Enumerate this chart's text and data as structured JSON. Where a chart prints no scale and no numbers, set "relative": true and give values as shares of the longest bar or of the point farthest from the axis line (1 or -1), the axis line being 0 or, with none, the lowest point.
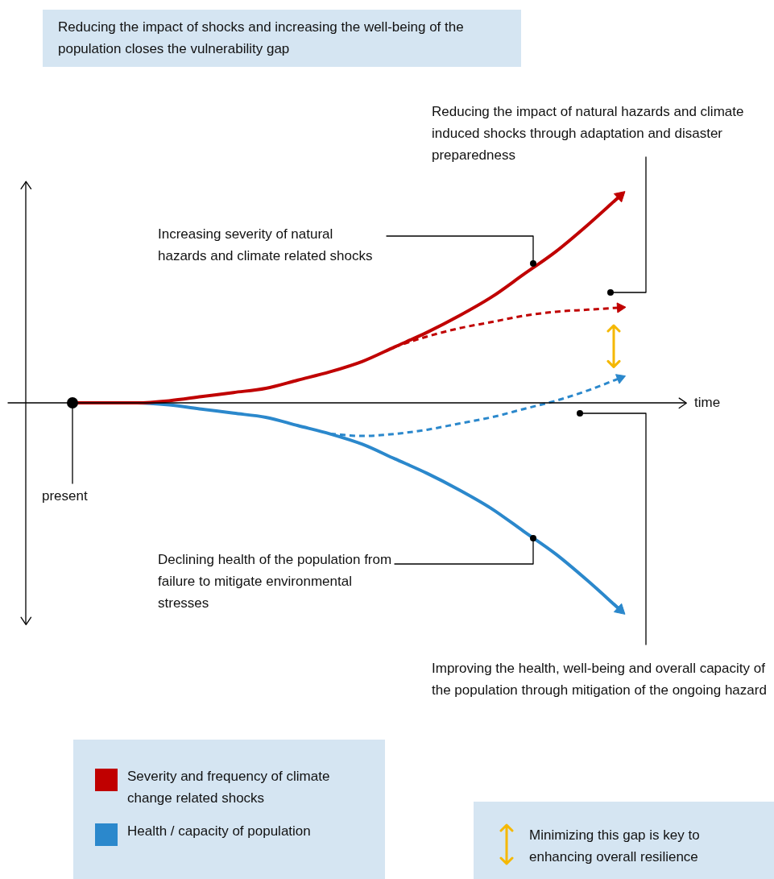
{
  "chart_data": {
    "type": "line",
    "relative": true,
    "legend": "bottom left",
    "title": "Reducing the impact of shocks and increasing the well-being of the population closes the vulnerability gap",
    "xlabel": "time",
    "annotations": [
      "Reducing the impact of natural hazards and climate induced shocks through adaptation and disaster preparedness",
      "Increasing severity of natural hazards and climate related shocks",
      "present",
      "Declining health of the population from failure to mitigate environmental stresses",
      "Improving the health, well-being and overall capacity of the population through mitigation of the ongoing hazard",
      "Minimizing this gap is key to enhancing overall resilience"
    ],
    "categories": [
      null,
      null,
      null,
      null,
      null,
      null,
      null,
      null,
      null,
      null,
      null,
      null,
      null,
      null,
      null,
      null,
      null,
      null
    ],
    "series": [
      {
        "name": "Severity and frequency of climate change related shocks",
        "color": "#c00000",
        "line_style": "solid",
        "values": [
          0,
          0,
          0,
          0.01,
          0.03,
          0.05,
          0.07,
          0.11,
          0.15,
          0.2,
          0.27,
          0.34,
          0.42,
          0.51,
          0.62,
          0.73,
          0.86,
          1
        ]
      },
      {
        "name": "Health / capacity of population",
        "color": "#2b88cc",
        "line_style": "solid",
        "values": [
          0,
          0,
          0,
          -0.01,
          -0.03,
          -0.05,
          -0.07,
          -0.11,
          -0.15,
          -0.2,
          -0.27,
          -0.34,
          -0.42,
          -0.51,
          -0.62,
          -0.73,
          -0.86,
          -1
        ]
      },
      {
        "color": "#c00000",
        "line_style": "dashed",
        "values": [
          null,
          null,
          null,
          null,
          null,
          null,
          null,
          null,
          null,
          null,
          0.27,
          0.32,
          0.36,
          0.39,
          0.42,
          0.44,
          0.45,
          0.46
        ]
      },
      {
        "color": "#2b88cc",
        "line_style": "dashed",
        "values": [
          null,
          null,
          null,
          null,
          null,
          null,
          null,
          null,
          -0.15,
          -0.16,
          -0.15,
          -0.13,
          -0.1,
          -0.07,
          -0.03,
          0.01,
          0.06,
          0.12
        ]
      }
    ]
  }
}
